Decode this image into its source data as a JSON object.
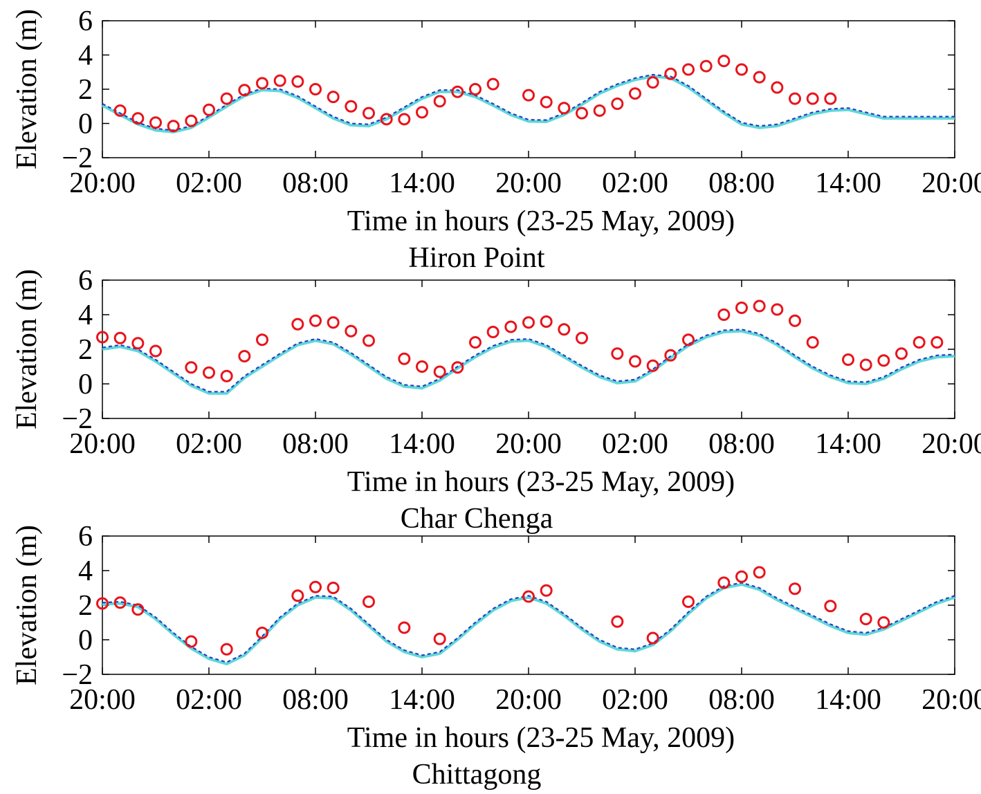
{
  "chart_data": [
    {
      "type": "line",
      "title": "",
      "xlabel": "Time in hours (23-25 May, 2009)",
      "ylabel": "Elevation (m)",
      "below_label": "Hiron Point",
      "ylim": [
        -2,
        6
      ],
      "yticks": [
        "−2",
        "0",
        "2",
        "4",
        "6"
      ],
      "xlim": [
        0,
        48
      ],
      "xtick_labels": [
        "20:00",
        "02:00",
        "08:00",
        "14:00",
        "20:00",
        "02:00",
        "08:00",
        "14:00",
        "20:00"
      ],
      "colors": {
        "line1": "#5fd8d8",
        "line2": "#2b3fc4",
        "obs": "#e8141c"
      },
      "series": [
        {
          "style": "line",
          "dash": false,
          "x": [
            0,
            1,
            2,
            3,
            4,
            5,
            6,
            7,
            8,
            9,
            10,
            11,
            12,
            13,
            14,
            15,
            16,
            17,
            18,
            19,
            20,
            21,
            22,
            23,
            24,
            25,
            26,
            27,
            28,
            29,
            30,
            31,
            32,
            33,
            34,
            35,
            36,
            37,
            38,
            39,
            40,
            41,
            42,
            43,
            44,
            45,
            46,
            47,
            48
          ],
          "values": [
            1.05,
            0.5,
            -0.05,
            -0.4,
            -0.5,
            -0.25,
            0.35,
            1.0,
            1.6,
            1.95,
            1.9,
            1.5,
            0.9,
            0.3,
            -0.1,
            -0.15,
            0.25,
            0.85,
            1.45,
            1.85,
            1.85,
            1.55,
            1.05,
            0.5,
            0.12,
            0.1,
            0.5,
            1.1,
            1.75,
            2.2,
            2.55,
            2.75,
            2.65,
            2.1,
            1.35,
            0.6,
            -0.05,
            -0.25,
            -0.15,
            0.2,
            0.55,
            0.75,
            0.8,
            0.55,
            0.3,
            0.3,
            0.3,
            0.3,
            0.3
          ]
        },
        {
          "style": "line",
          "dash": true,
          "x": [
            0,
            1,
            2,
            3,
            4,
            5,
            6,
            7,
            8,
            9,
            10,
            11,
            12,
            13,
            14,
            15,
            16,
            17,
            18,
            19,
            20,
            21,
            22,
            23,
            24,
            25,
            26,
            27,
            28,
            29,
            30,
            31,
            32,
            33,
            34,
            35,
            36,
            37,
            38,
            39,
            40,
            41,
            42,
            43,
            44,
            45,
            46,
            47,
            48
          ],
          "values": [
            1.15,
            0.6,
            0.05,
            -0.3,
            -0.4,
            -0.15,
            0.45,
            1.1,
            1.7,
            2.05,
            2.0,
            1.6,
            1.0,
            0.4,
            0.0,
            -0.05,
            0.35,
            0.95,
            1.55,
            1.95,
            1.95,
            1.65,
            1.15,
            0.6,
            0.22,
            0.2,
            0.6,
            1.2,
            1.85,
            2.3,
            2.65,
            2.85,
            2.75,
            2.2,
            1.45,
            0.7,
            0.05,
            -0.15,
            -0.05,
            0.3,
            0.65,
            0.85,
            0.9,
            0.65,
            0.4,
            0.4,
            0.4,
            0.4,
            0.4
          ]
        },
        {
          "style": "markers",
          "x": [
            1,
            2,
            3,
            4,
            5,
            6,
            7,
            8,
            9,
            10,
            11,
            12,
            13,
            14,
            15,
            16,
            17,
            18,
            19,
            20,
            21,
            22,
            24,
            25,
            26,
            27,
            28,
            29,
            30,
            31,
            32,
            33,
            34,
            35,
            36,
            37,
            38,
            39,
            40,
            41
          ],
          "values": [
            0.75,
            0.3,
            0.05,
            -0.15,
            0.15,
            0.8,
            1.45,
            1.95,
            2.35,
            2.5,
            2.45,
            2.0,
            1.55,
            1.0,
            0.6,
            0.25,
            0.25,
            0.65,
            1.3,
            1.85,
            2.0,
            2.3,
            1.65,
            1.25,
            0.9,
            0.6,
            0.75,
            1.15,
            1.75,
            2.4,
            2.9,
            3.15,
            3.35,
            3.65,
            3.15,
            2.7,
            2.1,
            1.45,
            1.45,
            1.45
          ]
        }
      ]
    },
    {
      "type": "line",
      "title": "",
      "xlabel": "Time in hours (23-25 May, 2009)",
      "ylabel": "Elevation (m)",
      "below_label": "Char Chenga",
      "ylim": [
        -2,
        6
      ],
      "yticks": [
        "−2",
        "0",
        "2",
        "4",
        "6"
      ],
      "xlim": [
        0,
        48
      ],
      "xtick_labels": [
        "20:00",
        "02:00",
        "08:00",
        "14:00",
        "20:00",
        "02:00",
        "08:00",
        "14:00",
        "20:00"
      ],
      "colors": {
        "line1": "#5fd8d8",
        "line2": "#2b3fc4",
        "obs": "#e8141c"
      },
      "series": [
        {
          "style": "line",
          "dash": false,
          "x": [
            0,
            1,
            2,
            3,
            4,
            5,
            6,
            7,
            8,
            9,
            10,
            11,
            12,
            13,
            14,
            15,
            16,
            17,
            18,
            19,
            20,
            21,
            22,
            23,
            24,
            25,
            26,
            27,
            28,
            29,
            30,
            31,
            32,
            33,
            34,
            35,
            36,
            37,
            38,
            39,
            40,
            41,
            42,
            43,
            44,
            45,
            46,
            47,
            48
          ],
          "values": [
            2.0,
            2.15,
            1.9,
            1.3,
            0.6,
            -0.1,
            -0.55,
            -0.55,
            0.35,
            1.0,
            1.65,
            2.25,
            2.5,
            2.3,
            1.7,
            1.0,
            0.3,
            -0.15,
            -0.25,
            0.2,
            0.9,
            1.55,
            2.1,
            2.45,
            2.5,
            2.15,
            1.55,
            0.95,
            0.4,
            0.05,
            0.15,
            0.75,
            1.5,
            2.2,
            2.7,
            3.0,
            3.05,
            2.8,
            2.25,
            1.55,
            0.9,
            0.4,
            0.05,
            0.0,
            0.3,
            0.85,
            1.3,
            1.55,
            1.6
          ]
        },
        {
          "style": "line",
          "dash": true,
          "x": [
            0,
            1,
            2,
            3,
            4,
            5,
            6,
            7,
            8,
            9,
            10,
            11,
            12,
            13,
            14,
            15,
            16,
            17,
            18,
            19,
            20,
            21,
            22,
            23,
            24,
            25,
            26,
            27,
            28,
            29,
            30,
            31,
            32,
            33,
            34,
            35,
            36,
            37,
            38,
            39,
            40,
            41,
            42,
            43,
            44,
            45,
            46,
            47,
            48
          ],
          "values": [
            2.1,
            2.25,
            2.0,
            1.4,
            0.7,
            0.0,
            -0.45,
            -0.45,
            0.45,
            1.1,
            1.75,
            2.35,
            2.6,
            2.4,
            1.8,
            1.1,
            0.4,
            -0.05,
            -0.15,
            0.3,
            1.0,
            1.65,
            2.2,
            2.55,
            2.6,
            2.25,
            1.65,
            1.05,
            0.5,
            0.15,
            0.25,
            0.85,
            1.6,
            2.3,
            2.8,
            3.1,
            3.15,
            2.9,
            2.35,
            1.65,
            1.0,
            0.5,
            0.15,
            0.1,
            0.4,
            0.95,
            1.4,
            1.65,
            1.7
          ]
        },
        {
          "style": "markers",
          "x": [
            0,
            1,
            2,
            3,
            5,
            6,
            7,
            8,
            9,
            11,
            12,
            13,
            14,
            15,
            17,
            18,
            19,
            20,
            21,
            22,
            23,
            24,
            25,
            26,
            27,
            29,
            30,
            31,
            32,
            33,
            35,
            36,
            37,
            38,
            39,
            40,
            42,
            43,
            44,
            45,
            46,
            47
          ],
          "values": [
            2.7,
            2.65,
            2.35,
            1.9,
            0.95,
            0.65,
            0.45,
            1.6,
            2.55,
            3.45,
            3.65,
            3.55,
            3.05,
            2.5,
            1.45,
            1.0,
            0.7,
            0.95,
            2.4,
            3.0,
            3.3,
            3.55,
            3.6,
            3.15,
            2.65,
            1.75,
            1.3,
            1.05,
            1.65,
            2.55,
            4.0,
            4.4,
            4.5,
            4.3,
            3.65,
            2.4,
            1.4,
            1.1,
            1.35,
            1.75,
            2.4,
            2.4
          ]
        }
      ]
    },
    {
      "type": "line",
      "title": "",
      "xlabel": "Time in hours (23-25 May, 2009)",
      "ylabel": "Elevation (m)",
      "below_label": "Chittagong",
      "ylim": [
        -2,
        6
      ],
      "yticks": [
        "−2",
        "0",
        "2",
        "4",
        "6"
      ],
      "xlim": [
        0,
        48
      ],
      "xtick_labels": [
        "20:00",
        "02:00",
        "08:00",
        "14:00",
        "20:00",
        "02:00",
        "08:00",
        "14:00",
        "20:00"
      ],
      "colors": {
        "line1": "#5fd8d8",
        "line2": "#2b3fc4",
        "obs": "#e8141c"
      },
      "series": [
        {
          "style": "line",
          "dash": false,
          "x": [
            0,
            1,
            2,
            3,
            4,
            5,
            6,
            7,
            8,
            9,
            10,
            11,
            12,
            13,
            14,
            15,
            16,
            17,
            18,
            19,
            20,
            21,
            22,
            23,
            24,
            25,
            26,
            27,
            28,
            29,
            30,
            31,
            32,
            33,
            34,
            35,
            36,
            37,
            38,
            39,
            40,
            41,
            42,
            43,
            44,
            45,
            46,
            47,
            48
          ],
          "values": [
            2.05,
            2.1,
            1.9,
            1.2,
            0.3,
            -0.5,
            -1.1,
            -1.4,
            -0.9,
            0.1,
            1.2,
            2.0,
            2.45,
            2.4,
            1.7,
            0.8,
            -0.1,
            -0.7,
            -1.0,
            -0.8,
            0.0,
            0.9,
            1.7,
            2.25,
            2.45,
            2.1,
            1.4,
            0.6,
            -0.1,
            -0.55,
            -0.65,
            -0.3,
            0.5,
            1.5,
            2.4,
            3.0,
            3.2,
            2.9,
            2.3,
            1.8,
            1.3,
            0.8,
            0.4,
            0.3,
            0.6,
            1.1,
            1.6,
            2.1,
            2.45
          ]
        },
        {
          "style": "line",
          "dash": true,
          "x": [
            0,
            1,
            2,
            3,
            4,
            5,
            6,
            7,
            8,
            9,
            10,
            11,
            12,
            13,
            14,
            15,
            16,
            17,
            18,
            19,
            20,
            21,
            22,
            23,
            24,
            25,
            26,
            27,
            28,
            29,
            30,
            31,
            32,
            33,
            34,
            35,
            36,
            37,
            38,
            39,
            40,
            41,
            42,
            43,
            44,
            45,
            46,
            47,
            48
          ],
          "values": [
            2.15,
            2.2,
            2.0,
            1.3,
            0.4,
            -0.4,
            -1.0,
            -1.3,
            -0.8,
            0.2,
            1.3,
            2.1,
            2.55,
            2.5,
            1.8,
            0.9,
            0.0,
            -0.6,
            -0.9,
            -0.7,
            0.1,
            1.0,
            1.8,
            2.35,
            2.55,
            2.2,
            1.5,
            0.7,
            0.0,
            -0.45,
            -0.55,
            -0.2,
            0.6,
            1.6,
            2.5,
            3.1,
            3.3,
            3.0,
            2.4,
            1.9,
            1.4,
            0.9,
            0.5,
            0.4,
            0.7,
            1.2,
            1.7,
            2.2,
            2.55
          ]
        },
        {
          "style": "markers",
          "x": [
            0,
            1,
            2,
            5,
            7,
            9,
            11,
            12,
            13,
            15,
            17,
            19,
            24,
            25,
            29,
            31,
            33,
            35,
            36,
            37,
            39,
            41,
            43,
            44
          ],
          "values": [
            2.1,
            2.15,
            1.75,
            -0.1,
            -0.55,
            0.4,
            2.55,
            3.05,
            3.0,
            2.2,
            0.7,
            0.05,
            2.5,
            2.85,
            1.05,
            0.1,
            2.2,
            3.3,
            3.65,
            3.9,
            2.95,
            1.95,
            1.2,
            1.0
          ]
        }
      ]
    }
  ]
}
